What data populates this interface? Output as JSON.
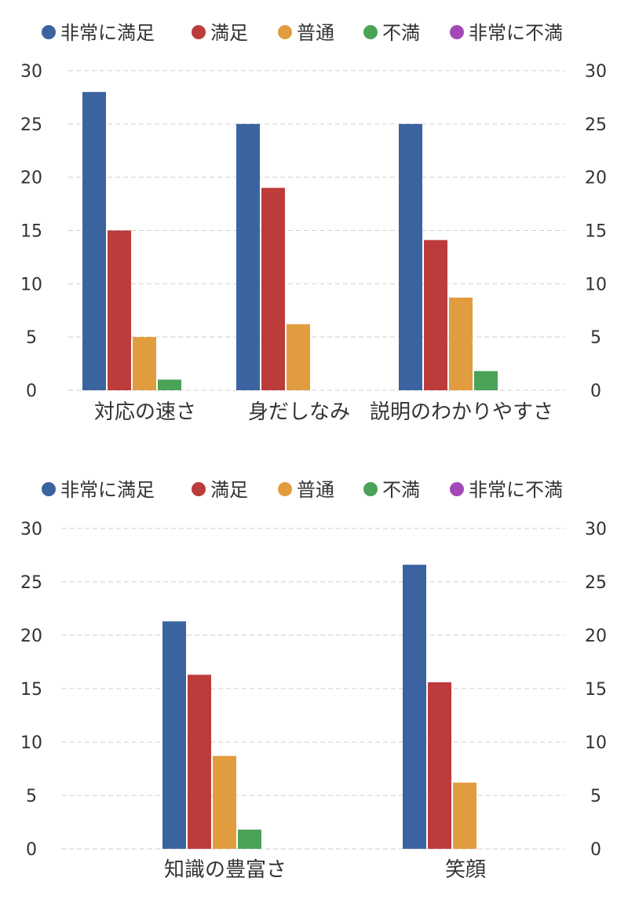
{
  "series_names": [
    "非常に満足",
    "満足",
    "普通",
    "不満",
    "非常に不満"
  ],
  "colors": {
    "非常に満足": "#3b63a0",
    "満足": "#bc3c3b",
    "普通": "#e29c40",
    "不満": "#4aa357",
    "非常に不満": "#a448b8"
  },
  "chart_data": [
    {
      "type": "bar",
      "categories": [
        "対応の速さ",
        "身だしなみ",
        "説明のわかりやすさ"
      ],
      "series": [
        {
          "name": "非常に満足",
          "values": [
            28,
            25,
            25
          ]
        },
        {
          "name": "満足",
          "values": [
            15,
            19,
            14.1
          ]
        },
        {
          "name": "普通",
          "values": [
            5,
            6.2,
            8.7
          ]
        },
        {
          "name": "不満",
          "values": [
            1,
            0,
            1.8
          ]
        },
        {
          "name": "非常に不満",
          "values": [
            0,
            0,
            0
          ]
        }
      ],
      "ylim": [
        0,
        30
      ],
      "yticks": [
        "0",
        "5",
        "10",
        "15",
        "20",
        "25",
        "30"
      ],
      "secondary_yticks": [
        "0",
        "5",
        "10",
        "15",
        "20",
        "25",
        "30"
      ],
      "grid": true,
      "legend": "top"
    },
    {
      "type": "bar",
      "categories": [
        "知識の豊富さ",
        "笑顔"
      ],
      "series": [
        {
          "name": "非常に満足",
          "values": [
            21.3,
            26.6
          ]
        },
        {
          "name": "満足",
          "values": [
            16.3,
            15.6
          ]
        },
        {
          "name": "普通",
          "values": [
            8.7,
            6.2
          ]
        },
        {
          "name": "不満",
          "values": [
            1.8,
            0
          ]
        },
        {
          "name": "非常に不満",
          "values": [
            0,
            0
          ]
        }
      ],
      "ylim": [
        0,
        30
      ],
      "yticks": [
        "0",
        "5",
        "10",
        "15",
        "20",
        "25",
        "30"
      ],
      "secondary_yticks": [
        "0",
        "5",
        "10",
        "15",
        "20",
        "25",
        "30"
      ],
      "grid": true,
      "legend": "top"
    }
  ]
}
